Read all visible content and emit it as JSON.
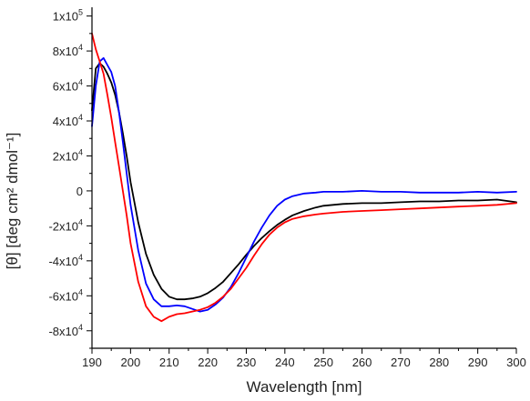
{
  "chart_data": {
    "type": "line",
    "title": "",
    "xlabel": "Wavelength [nm]",
    "ylabel": "[θ] [deg cm² dmol⁻¹]",
    "xlim": [
      190,
      300
    ],
    "ylim": [
      -90000,
      105000
    ],
    "grid": false,
    "x_ticks": [
      190,
      200,
      210,
      220,
      230,
      240,
      250,
      260,
      270,
      280,
      290,
      300
    ],
    "x_tick_labels": [
      "190",
      "200",
      "210",
      "220",
      "230",
      "240",
      "250",
      "260",
      "270",
      "280",
      "290",
      "300"
    ],
    "y_ticks": [
      -80000,
      -60000,
      -40000,
      -20000,
      0,
      20000,
      40000,
      60000,
      80000,
      100000
    ],
    "y_tick_labels": [
      {
        "mantissa": "-8x10",
        "exp": "4"
      },
      {
        "mantissa": "-6x10",
        "exp": "4"
      },
      {
        "mantissa": "-4x10",
        "exp": "4"
      },
      {
        "mantissa": "-2x10",
        "exp": "4"
      },
      {
        "mantissa": "0",
        "exp": ""
      },
      {
        "mantissa": "2x10",
        "exp": "4"
      },
      {
        "mantissa": "4x10",
        "exp": "4"
      },
      {
        "mantissa": "6x10",
        "exp": "4"
      },
      {
        "mantissa": "8x10",
        "exp": "4"
      },
      {
        "mantissa": "1x10",
        "exp": "5"
      }
    ],
    "series": [
      {
        "color": "#000000",
        "x": [
          190,
          191,
          192,
          193,
          194,
          195,
          196,
          197,
          198,
          199,
          200,
          202,
          204,
          206,
          208,
          210,
          212,
          214,
          216,
          218,
          220,
          222,
          224,
          226,
          228,
          230,
          232,
          234,
          236,
          238,
          240,
          242,
          245,
          248,
          250,
          255,
          260,
          265,
          270,
          275,
          280,
          285,
          290,
          295,
          300
        ],
        "y": [
          46000,
          70000,
          73000,
          71000,
          67000,
          62000,
          55000,
          45000,
          33000,
          20000,
          5000,
          -18000,
          -36000,
          -48000,
          -56000,
          -60500,
          -62000,
          -62000,
          -61500,
          -60500,
          -58500,
          -55500,
          -52000,
          -47000,
          -42000,
          -36500,
          -31500,
          -27000,
          -23000,
          -19500,
          -16500,
          -14000,
          -11500,
          -9500,
          -8500,
          -7500,
          -7000,
          -7000,
          -6500,
          -6000,
          -6000,
          -5500,
          -5500,
          -5000,
          -6500
        ]
      },
      {
        "color": "#0000ff",
        "x": [
          190,
          191,
          192,
          193,
          194,
          195,
          196,
          197,
          198,
          199,
          200,
          202,
          204,
          206,
          208,
          210,
          212,
          214,
          216,
          218,
          220,
          222,
          224,
          226,
          228,
          230,
          232,
          234,
          236,
          238,
          240,
          242,
          245,
          248,
          250,
          255,
          260,
          265,
          270,
          275,
          280,
          285,
          290,
          295,
          300
        ],
        "y": [
          37000,
          60000,
          74000,
          76000,
          72000,
          68000,
          60000,
          45000,
          28000,
          10000,
          -8000,
          -34000,
          -53000,
          -62000,
          -66000,
          -66000,
          -65500,
          -66000,
          -67500,
          -69000,
          -68000,
          -65000,
          -61000,
          -55000,
          -47000,
          -38000,
          -29000,
          -21000,
          -14000,
          -8500,
          -5000,
          -3000,
          -1500,
          -1000,
          -500,
          -500,
          0,
          -500,
          -500,
          -1000,
          -1000,
          -1000,
          -500,
          -1000,
          -500
        ]
      },
      {
        "color": "#ff0000",
        "x": [
          190,
          191,
          192,
          193,
          194,
          195,
          196,
          197,
          198,
          199,
          200,
          202,
          204,
          206,
          208,
          210,
          212,
          214,
          216,
          218,
          220,
          222,
          224,
          226,
          228,
          230,
          232,
          234,
          236,
          238,
          240,
          242,
          245,
          248,
          250,
          255,
          260,
          265,
          270,
          275,
          280,
          285,
          290,
          295,
          300
        ],
        "y": [
          90000,
          81000,
          74000,
          67000,
          55000,
          42000,
          28000,
          14000,
          0,
          -14000,
          -30000,
          -52000,
          -66000,
          -72000,
          -74500,
          -72000,
          -70500,
          -70000,
          -69000,
          -68000,
          -66500,
          -64000,
          -60500,
          -56000,
          -50000,
          -44000,
          -37000,
          -30500,
          -25000,
          -21000,
          -18000,
          -16000,
          -14500,
          -13500,
          -13000,
          -12000,
          -11500,
          -11000,
          -10500,
          -10000,
          -9500,
          -9000,
          -8500,
          -8000,
          -7000
        ]
      }
    ]
  }
}
